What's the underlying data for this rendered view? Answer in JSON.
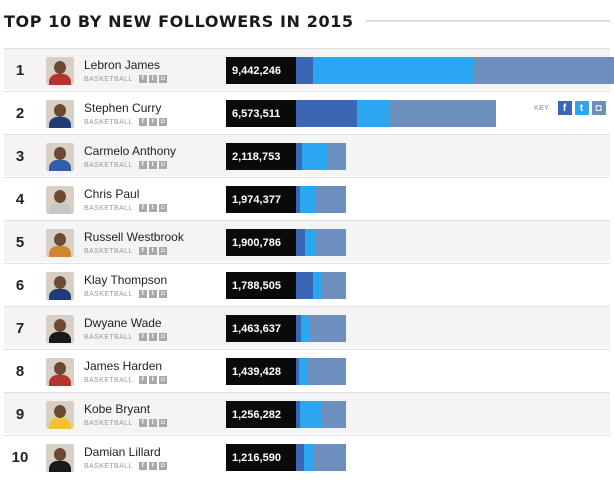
{
  "title": "TOP 10 BY NEW FOLLOWERS IN 2015",
  "key": {
    "label": "KEY",
    "items": [
      {
        "icon": "facebook-icon",
        "glyph": "f",
        "color": "#3b66b3"
      },
      {
        "icon": "twitter-icon",
        "glyph": "t",
        "color": "#2aa7f0"
      },
      {
        "icon": "instagram-icon",
        "glyph": "◘",
        "color": "#6d8fbe"
      }
    ]
  },
  "colors": {
    "facebook": "#3b66b3",
    "twitter": "#2aa7f0",
    "instagram": "#6d8fbe",
    "total_bg": "#0a0a0a"
  },
  "chart_data": {
    "type": "bar",
    "stacked": true,
    "title": "TOP 10 BY NEW FOLLOWERS IN 2015",
    "series_order": [
      "facebook",
      "twitter",
      "instagram"
    ],
    "rows": [
      {
        "rank": "1",
        "name": "Lebron James",
        "sport": "BASKETBALL",
        "total": "9,442,246",
        "total_value": 9442246,
        "facebook": 500000,
        "twitter": 4800000,
        "instagram": 4142246
      },
      {
        "rank": "2",
        "name": "Stephen Curry",
        "sport": "BASKETBALL",
        "total": "6,573,511",
        "total_value": 6573511,
        "facebook": 2000000,
        "twitter": 1100000,
        "instagram": 3473511
      },
      {
        "rank": "3",
        "name": "Carmelo Anthony",
        "sport": "BASKETBALL",
        "total": "2,118,753",
        "total_value": 2118753,
        "facebook": 250000,
        "twitter": 1050000,
        "instagram": 818753
      },
      {
        "rank": "4",
        "name": "Chris Paul",
        "sport": "BASKETBALL",
        "total": "1,974,377",
        "total_value": 1974377,
        "facebook": 150000,
        "twitter": 650000,
        "instagram": 1174377
      },
      {
        "rank": "5",
        "name": "Russell Westbrook",
        "sport": "BASKETBALL",
        "total": "1,900,786",
        "total_value": 1900786,
        "facebook": 350000,
        "twitter": 400000,
        "instagram": 1150786
      },
      {
        "rank": "6",
        "name": "Klay Thompson",
        "sport": "BASKETBALL",
        "total": "1,788,505",
        "total_value": 1788505,
        "facebook": 600000,
        "twitter": 300000,
        "instagram": 888505
      },
      {
        "rank": "7",
        "name": "Dwyane Wade",
        "sport": "BASKETBALL",
        "total": "1,463,637",
        "total_value": 1463637,
        "facebook": 150000,
        "twitter": 250000,
        "instagram": 1063637
      },
      {
        "rank": "8",
        "name": "James Harden",
        "sport": "BASKETBALL",
        "total": "1,439,428",
        "total_value": 1439428,
        "facebook": 100000,
        "twitter": 250000,
        "instagram": 1089428
      },
      {
        "rank": "9",
        "name": "Kobe Bryant",
        "sport": "BASKETBALL",
        "total": "1,256,282",
        "total_value": 1256282,
        "facebook": 100000,
        "twitter": 550000,
        "instagram": 606282
      },
      {
        "rank": "10",
        "name": "Damian Lillard",
        "sport": "BASKETBALL",
        "total": "1,216,590",
        "total_value": 1216590,
        "facebook": 200000,
        "twitter": 250000,
        "instagram": 766590
      }
    ]
  }
}
